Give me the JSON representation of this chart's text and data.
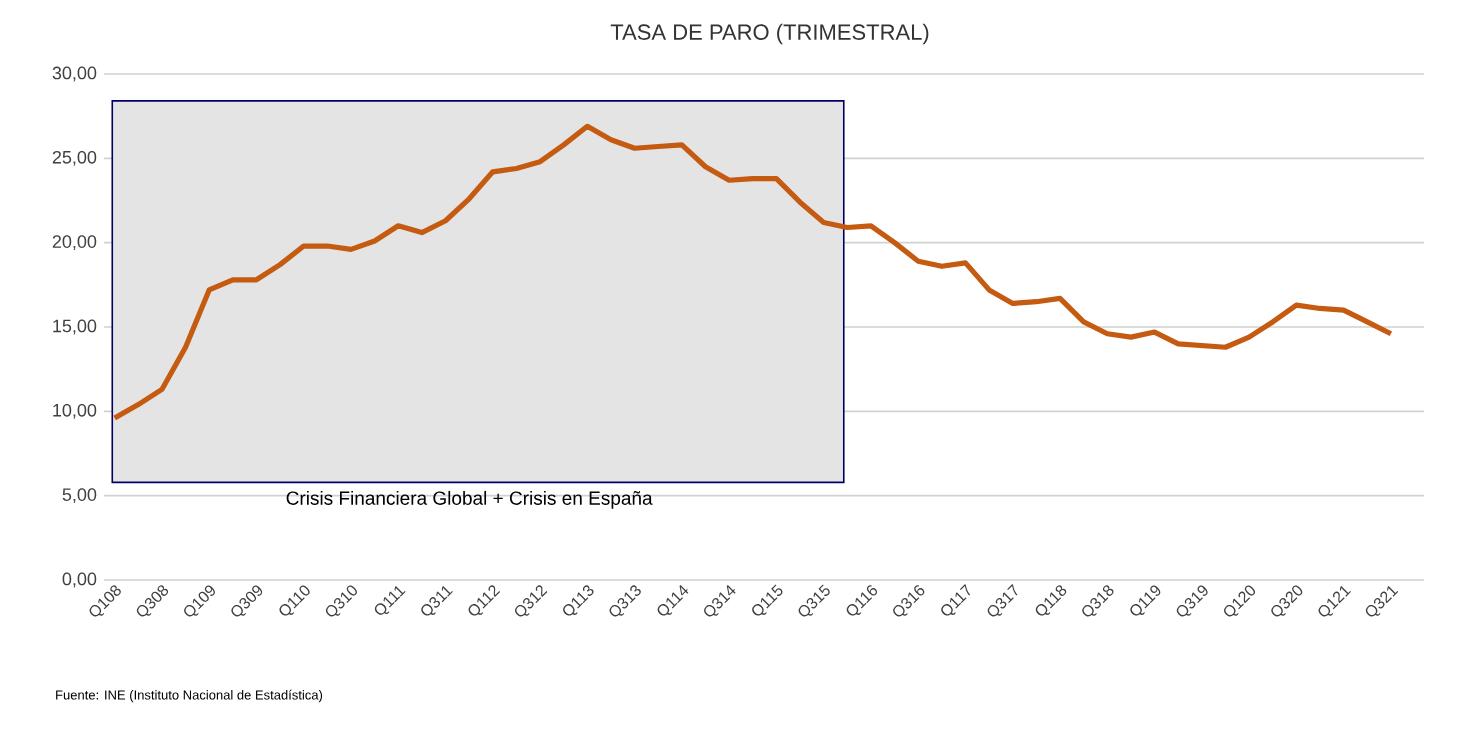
{
  "chart_data": {
    "type": "line",
    "title": "TASA DE PARO (TRIMESTRAL)",
    "categories": [
      "Q108",
      null,
      "Q308",
      null,
      "Q109",
      null,
      "Q309",
      null,
      "Q110",
      null,
      "Q310",
      null,
      "Q111",
      null,
      "Q311",
      null,
      "Q112",
      null,
      "Q312",
      null,
      "Q113",
      null,
      "Q313",
      null,
      "Q114",
      null,
      "Q314",
      null,
      "Q115",
      null,
      "Q315",
      null,
      "Q116",
      null,
      "Q316",
      null,
      "Q117",
      null,
      "Q317",
      null,
      "Q118",
      null,
      "Q318",
      null,
      "Q119",
      null,
      "Q319",
      null,
      "Q120",
      null,
      "Q320",
      null,
      "Q121",
      null,
      "Q321"
    ],
    "series": [
      {
        "color": "#c55a11",
        "values": [
          9.6,
          10.4,
          11.3,
          13.8,
          17.2,
          17.8,
          17.8,
          18.7,
          19.8,
          19.8,
          19.6,
          20.1,
          21.0,
          20.6,
          21.3,
          22.6,
          24.2,
          24.4,
          24.8,
          25.8,
          26.9,
          26.1,
          25.6,
          25.7,
          25.8,
          24.5,
          23.7,
          23.8,
          23.8,
          22.4,
          21.2,
          20.9,
          21.0,
          20.0,
          18.9,
          18.6,
          18.8,
          17.2,
          16.4,
          16.5,
          16.7,
          15.3,
          14.6,
          14.4,
          14.7,
          14.0,
          13.9,
          13.8,
          14.4,
          15.3,
          16.3,
          16.1,
          16.0,
          15.3,
          14.6
        ]
      }
    ],
    "ylim": [
      0,
      30
    ],
    "yticks": [
      {
        "value": 0,
        "label": "0,00"
      },
      {
        "value": 5,
        "label": "5,00"
      },
      {
        "value": 10,
        "label": "10,00"
      },
      {
        "value": 15,
        "label": "15,00"
      },
      {
        "value": 20,
        "label": "20,00"
      },
      {
        "value": 25,
        "label": "25,00"
      },
      {
        "value": 30,
        "label": "30,00"
      }
    ],
    "grid": "y",
    "legend": false,
    "marker": "none",
    "line_style": "solid",
    "bands": [
      {
        "axis": "x",
        "from": "Q108",
        "to": "Q315",
        "label": "Crisis Financiera Global + Crisis en  España",
        "color": "#e4e4e4"
      }
    ],
    "annotations": [
      "Fuente: INE (Instituto  Nacional de Estadística)"
    ]
  }
}
